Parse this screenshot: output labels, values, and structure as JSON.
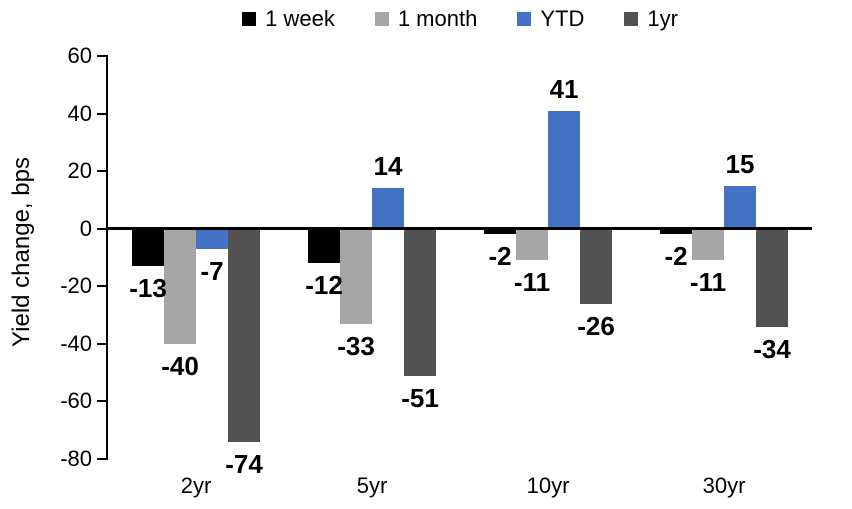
{
  "chart_data": {
    "type": "bar",
    "title": "",
    "xlabel": "",
    "ylabel": "Yield change, bps",
    "categories": [
      "2yr",
      "5yr",
      "10yr",
      "30yr"
    ],
    "series": [
      {
        "name": "1 week",
        "color": "#000000",
        "values": [
          -13,
          -12,
          -2,
          -2
        ]
      },
      {
        "name": "1 month",
        "color": "#A6A6A6",
        "values": [
          -40,
          -33,
          -11,
          -11
        ]
      },
      {
        "name": "YTD",
        "color": "#4472C4",
        "values": [
          -7,
          14,
          41,
          15
        ]
      },
      {
        "name": "1yr",
        "color": "#525252",
        "values": [
          -74,
          -51,
          -26,
          -34
        ]
      }
    ],
    "ylim": [
      -80,
      60
    ],
    "ytick_step": 20,
    "yticks": [
      60,
      40,
      20,
      0,
      -20,
      -40,
      -60,
      -80
    ],
    "legend_position": "top",
    "grid": false,
    "data_labels": true,
    "axis_color": "#000000",
    "label_color": "#000000",
    "background_color": "#FFFFFF"
  }
}
